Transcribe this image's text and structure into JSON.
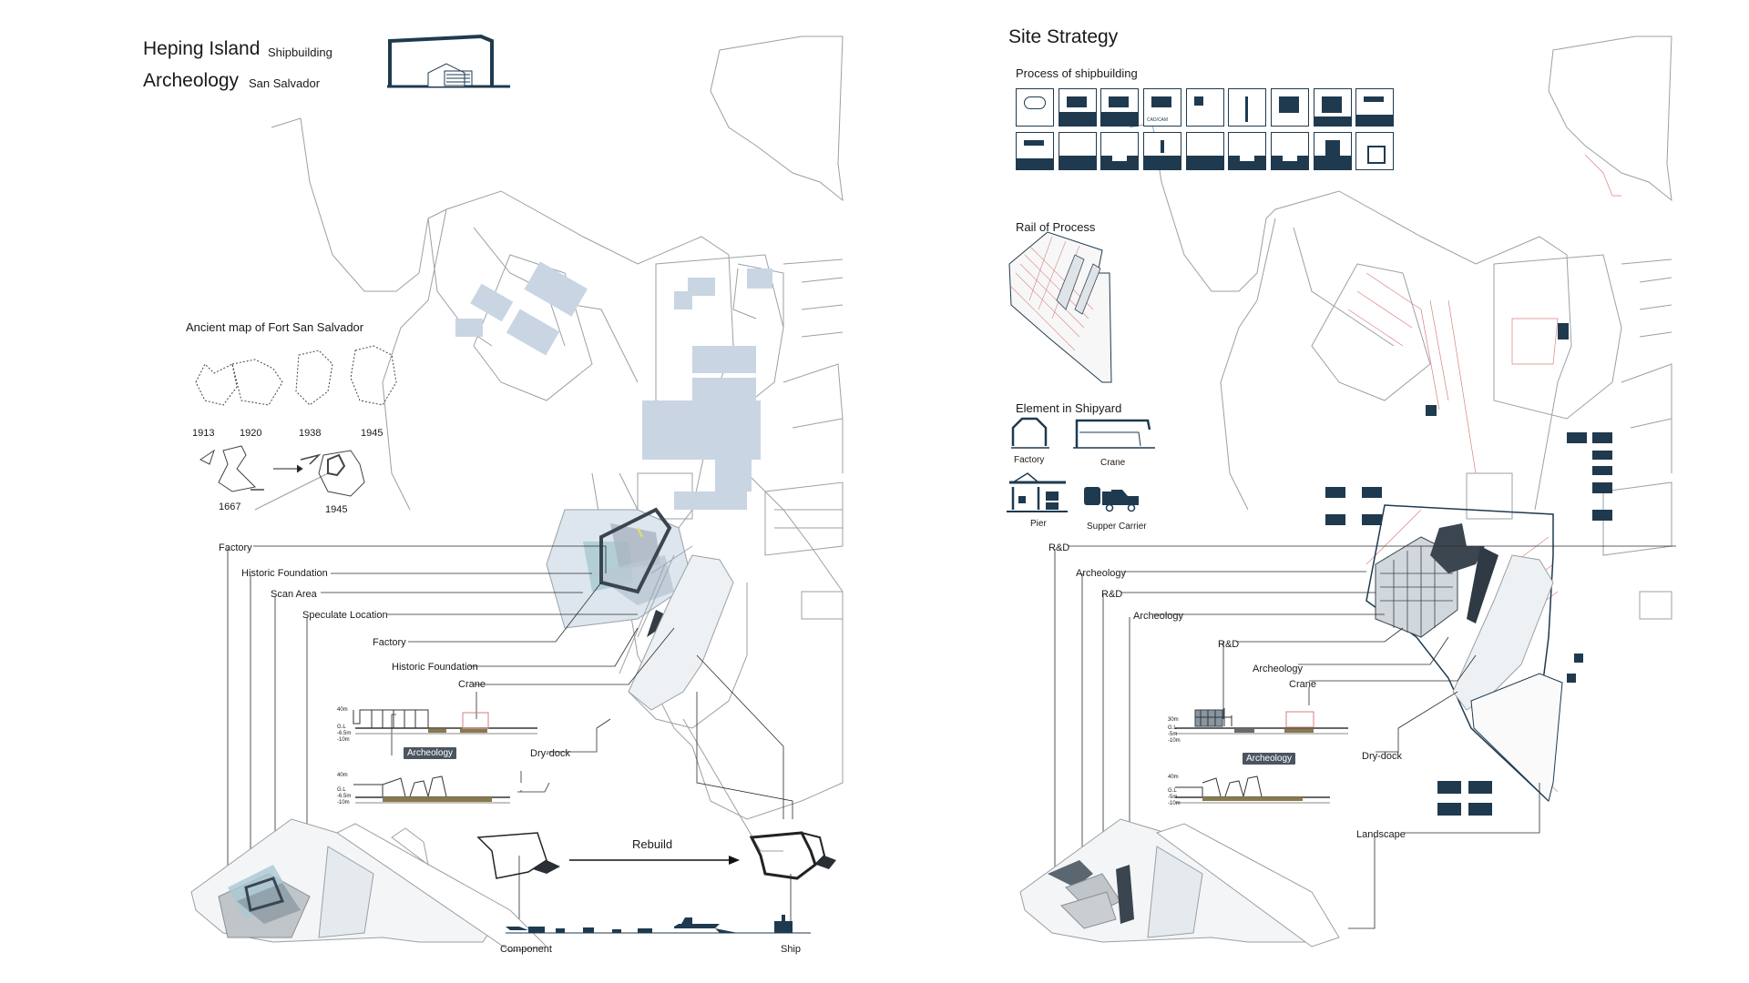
{
  "left_panel": {
    "title_line1_main": "Heping Island",
    "title_line1_sub": "Shipbuilding",
    "title_line2_main": "Archeology",
    "title_line2_sub": "San Salvador",
    "ancient_map_title": "Ancient map of Fort San Salvador",
    "map_years": [
      "1913",
      "1920",
      "1938",
      "1945"
    ],
    "map_years_bottom": [
      "1667",
      "1945"
    ],
    "callouts": [
      "Factory",
      "Historic Foundation",
      "Scan Area",
      "Speculate Location"
    ],
    "section_labels": {
      "factory": "Factory",
      "historic_foundation": "Historic Foundation",
      "crane": "Crane",
      "archeology_tag": "Archeology",
      "dry_dock": "Dry-dock"
    },
    "section_levels_top": [
      "40m",
      "G.L",
      "-6.5m",
      "-10m"
    ],
    "section_levels_bottom": [
      "40m",
      "G.L",
      "-6.5m",
      "-10m"
    ],
    "rebuild_label": "Rebuild",
    "component_label": "Component",
    "ship_label": "Ship"
  },
  "right_panel": {
    "title": "Site Strategy",
    "process_title": "Process of shipbuilding",
    "process_icon_text": "CAD/CAM",
    "rail_title": "Rail of Process",
    "element_title": "Element in Shipyard",
    "elements": [
      "Factory",
      "Crane",
      "Pier",
      "Supper Carrier"
    ],
    "callouts": [
      "R&D",
      "Archeology",
      "R&D",
      "Archeology"
    ],
    "section_labels": {
      "rd": "R&D",
      "archeology": "Archeology",
      "crane": "Crane",
      "archeology_tag": "Archeology",
      "dry_dock": "Dry-dock",
      "landscape": "Landscape"
    },
    "section_levels_top": [
      "30m",
      "G.L",
      "-5m",
      "-10m"
    ],
    "section_levels_bottom": [
      "40m",
      "G.L",
      "-5m",
      "-10m"
    ]
  },
  "colors": {
    "ink": "#1f3a4f",
    "site_lines": "#8a8f94",
    "building_fill": "#c9d5e2",
    "red_lines": "#d98080",
    "archeology_tag": "#4a5560"
  }
}
